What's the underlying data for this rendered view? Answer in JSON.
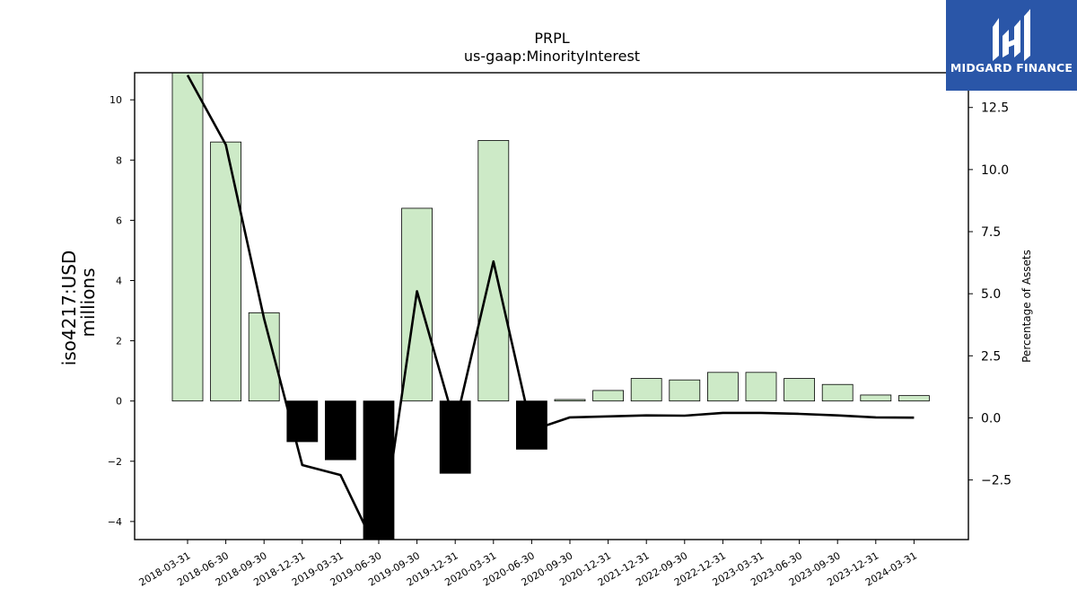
{
  "chart_data": {
    "type": "bar",
    "title": "PRPL",
    "subtitle": "us-gaap:MinorityInterest",
    "ylabel": "iso4217:USD",
    "ylabel2": "millions",
    "y2label": "Percentage of Assets",
    "categories": [
      "2018-03-31",
      "2018-06-30",
      "2018-09-30",
      "2018-12-31",
      "2019-03-31",
      "2019-06-30",
      "2019-09-30",
      "2019-12-31",
      "2020-03-31",
      "2020-06-30",
      "2020-09-30",
      "2020-12-31",
      "2021-12-31",
      "2022-09-30",
      "2022-12-31",
      "2023-03-31",
      "2023-06-30",
      "2023-09-30",
      "2023-12-31",
      "2024-03-31"
    ],
    "series": [
      {
        "axis": "left",
        "kind": "bar",
        "values": [
          11.0,
          8.6,
          2.93,
          -1.35,
          -1.95,
          -5.0,
          6.4,
          -2.4,
          8.65,
          -1.6,
          0.05,
          0.35,
          0.75,
          0.7,
          0.95,
          0.95,
          0.75,
          0.55,
          0.2,
          0.18
        ]
      },
      {
        "axis": "right",
        "kind": "line",
        "values": [
          13.8,
          11.0,
          4.0,
          -1.9,
          -2.3,
          -5.5,
          5.1,
          -0.3,
          6.3,
          -0.5,
          0.02,
          0.06,
          0.1,
          0.09,
          0.2,
          0.2,
          0.16,
          0.1,
          0.02,
          0.01
        ]
      }
    ],
    "bar_colors": {
      "positive": "#cdeac7",
      "negative": "#000000",
      "edge": "#000000"
    },
    "line_color": "#000000",
    "ylim": [
      -4.6,
      10.9
    ],
    "y2lim": [
      -4.9,
      13.9
    ],
    "yticks": [
      -4,
      -2,
      0,
      2,
      4,
      6,
      8,
      10
    ],
    "y2ticks": [
      -2.5,
      0.0,
      2.5,
      5.0,
      7.5,
      10.0,
      12.5
    ],
    "ytick_labels": [
      "−4",
      "−2",
      "0",
      "2",
      "4",
      "6",
      "8",
      "10"
    ],
    "y2tick_labels": [
      "−2.5",
      "0.0",
      "2.5",
      "5.0",
      "7.5",
      "10.0",
      "12.5"
    ],
    "grid": false,
    "legend": "none"
  },
  "logo": {
    "text": "MIDGARD FINANCE",
    "icon": "midgard-logo-icon"
  }
}
